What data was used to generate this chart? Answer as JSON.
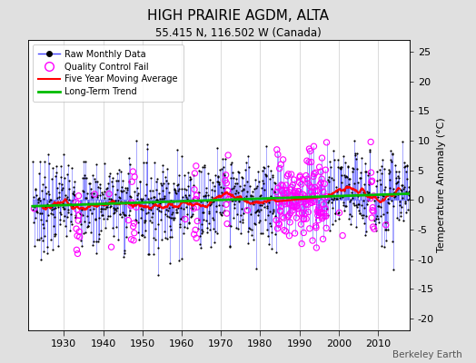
{
  "title": "HIGH PRAIRIE AGDM, ALTA",
  "subtitle": "55.415 N, 116.502 W (Canada)",
  "ylabel_right": "Temperature Anomaly (°C)",
  "credit": "Berkeley Earth",
  "year_start": 1922,
  "year_end": 2018,
  "ylim": [
    -22,
    27
  ],
  "yticks": [
    -20,
    -15,
    -10,
    -5,
    0,
    5,
    10,
    15,
    20,
    25
  ],
  "xticks": [
    1930,
    1940,
    1950,
    1960,
    1970,
    1980,
    1990,
    2000,
    2010
  ],
  "bg_color": "#e0e0e0",
  "plot_bg_color": "#ffffff",
  "line_color": "#4040ff",
  "dot_color": "#000000",
  "qc_color": "#ff00ff",
  "ma_color": "#ff0000",
  "trend_color": "#00bb00",
  "grid_color": "#cccccc",
  "long_term_slope": 0.022,
  "noise_std": 4.5,
  "seed": 7
}
